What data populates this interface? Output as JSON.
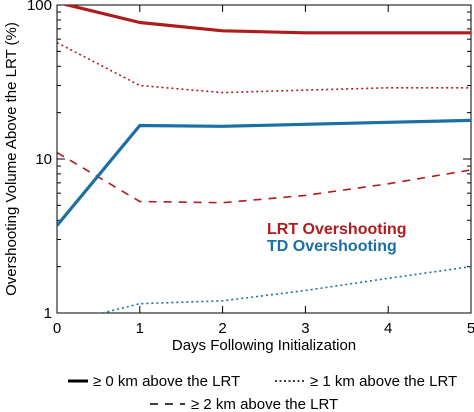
{
  "chart_data": {
    "type": "line",
    "xlabel": "Days Following Initialization",
    "ylabel": "Overshooting Volume Above the LRT (%)",
    "xlim": [
      0,
      5
    ],
    "ylim": [
      1,
      100
    ],
    "yscale": "log",
    "x_ticks": [
      "0",
      "1",
      "2",
      "3",
      "4",
      "5"
    ],
    "y_ticks": [
      "1",
      "10",
      "100"
    ],
    "grid": false,
    "colors": {
      "LRT Overshooting": "#b01c1c",
      "TD Overshooting": "#1a6fa6"
    },
    "line_styles": {
      "≥ 0 km above the LRT": "solid",
      "≥ 1 km above the LRT": "dotted",
      "≥ 2 km above the LRT": "dashed"
    },
    "annotations": [
      "LRT Overshooting",
      "TD Overshooting"
    ],
    "series": [
      {
        "group": "LRT Overshooting",
        "style": "solid",
        "x": [
          0,
          1,
          2,
          3,
          4,
          5
        ],
        "y": [
          104,
          77,
          68,
          66,
          66,
          66
        ]
      },
      {
        "group": "LRT Overshooting",
        "style": "dotted",
        "x": [
          0,
          1,
          2,
          3,
          4,
          5
        ],
        "y": [
          57,
          30,
          27,
          28,
          29,
          29
        ]
      },
      {
        "group": "LRT Overshooting",
        "style": "dashed",
        "x": [
          0,
          1,
          2,
          3,
          4,
          5
        ],
        "y": [
          11,
          5.3,
          5.2,
          5.8,
          6.9,
          8.5
        ]
      },
      {
        "group": "TD Overshooting",
        "style": "solid",
        "x": [
          0,
          1,
          2,
          3,
          4,
          5
        ],
        "y": [
          3.7,
          16.5,
          16.3,
          16.8,
          17.3,
          17.8
        ]
      },
      {
        "group": "TD Overshooting",
        "style": "dotted",
        "x": [
          0.55,
          1,
          2,
          3,
          4,
          5
        ],
        "y": [
          1,
          1.15,
          1.2,
          1.4,
          1.68,
          2.0
        ]
      }
    ],
    "legend": [
      {
        "label": "≥ 0 km above the LRT",
        "style": "solid"
      },
      {
        "label": "≥ 1 km above the LRT",
        "style": "dotted"
      },
      {
        "label": "≥ 2 km above the LRT",
        "style": "dashed"
      }
    ]
  }
}
